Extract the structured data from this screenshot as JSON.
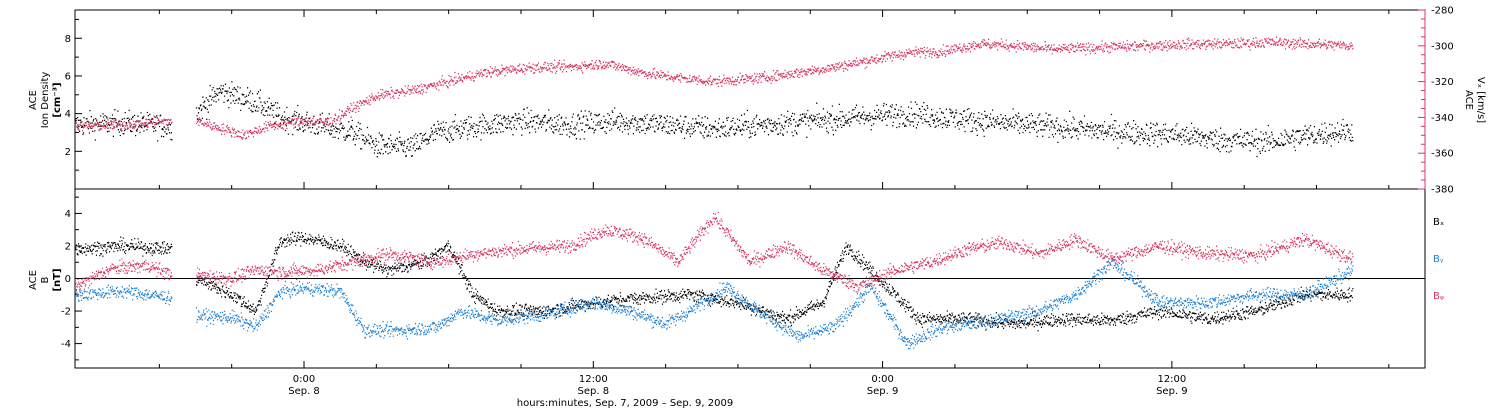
{
  "chart_data": [
    {
      "type": "scatter",
      "panel": "top",
      "ylabel_left": [
        "ACE",
        "Ion Density",
        "[cm⁻³]"
      ],
      "ylabel_right": [
        "ACE",
        "Vₓ [km/s]"
      ],
      "left_axis": {
        "ylim": [
          0,
          9.5
        ],
        "ticks": [
          2,
          4,
          6,
          8
        ]
      },
      "right_axis": {
        "ylim": [
          -380,
          -280
        ],
        "ticks": [
          -380,
          -360,
          -340,
          -320,
          -300,
          -280
        ]
      },
      "time_range_hours": [
        -9.5,
        46.5
      ],
      "series": [
        {
          "axis": "left",
          "color": "#000000",
          "trend": [
            [
              -9.5,
              3.4
            ],
            [
              -7.5,
              3.5
            ],
            [
              -5.5,
              3.3
            ],
            [
              -4.5,
              4.0
            ],
            [
              -3.5,
              5.2
            ],
            [
              -2.0,
              4.6
            ],
            [
              -1.0,
              3.8
            ],
            [
              0.5,
              3.4
            ],
            [
              2.0,
              3.0
            ],
            [
              3.0,
              2.3
            ],
            [
              4.5,
              2.2
            ],
            [
              5.5,
              3.0
            ],
            [
              7.0,
              3.3
            ],
            [
              9.0,
              3.6
            ],
            [
              11.0,
              3.4
            ],
            [
              13.0,
              3.6
            ],
            [
              15.0,
              3.4
            ],
            [
              17.0,
              3.2
            ],
            [
              19.0,
              3.4
            ],
            [
              21.0,
              3.6
            ],
            [
              23.0,
              3.8
            ],
            [
              25.0,
              4.0
            ],
            [
              26.5,
              3.8
            ],
            [
              28.0,
              3.6
            ],
            [
              30.0,
              3.4
            ],
            [
              32.0,
              3.2
            ],
            [
              34.0,
              3.0
            ],
            [
              36.0,
              2.9
            ],
            [
              38.0,
              2.6
            ],
            [
              40.0,
              2.5
            ],
            [
              42.0,
              2.9
            ],
            [
              43.5,
              3.1
            ]
          ],
          "gaps": [
            [
              -5.5,
              -4.5
            ]
          ]
        },
        {
          "name": "",
          "axis": "right",
          "color": "#d8345f",
          "trend": [
            [
              -9.5,
              -345
            ],
            [
              -7.5,
              -344
            ],
            [
              -5.5,
              -342
            ],
            [
              -4.5,
              -342
            ],
            [
              -3.5,
              -346
            ],
            [
              -2.5,
              -350
            ],
            [
              -1.5,
              -345
            ],
            [
              0.0,
              -342
            ],
            [
              1.0,
              -343
            ],
            [
              2.0,
              -335
            ],
            [
              3.0,
              -328
            ],
            [
              4.5,
              -325
            ],
            [
              6.0,
              -320
            ],
            [
              7.5,
              -315
            ],
            [
              9.5,
              -312
            ],
            [
              11.0,
              -312
            ],
            [
              12.5,
              -310
            ],
            [
              14.0,
              -315
            ],
            [
              15.5,
              -318
            ],
            [
              17.0,
              -320
            ],
            [
              19.0,
              -318
            ],
            [
              20.5,
              -315
            ],
            [
              22.0,
              -312
            ],
            [
              23.5,
              -308
            ],
            [
              25.0,
              -304
            ],
            [
              26.5,
              -303
            ],
            [
              28.0,
              -299
            ],
            [
              29.5,
              -300
            ],
            [
              31.0,
              -302
            ],
            [
              33.0,
              -301
            ],
            [
              35.0,
              -300
            ],
            [
              37.0,
              -299
            ],
            [
              38.5,
              -299
            ],
            [
              40.0,
              -298
            ],
            [
              41.5,
              -299
            ],
            [
              43.5,
              -300
            ]
          ],
          "gaps": [
            [
              -5.5,
              -4.5
            ]
          ]
        }
      ]
    },
    {
      "type": "scatter",
      "panel": "bottom",
      "ylabel_left": [
        "ACE",
        "B",
        "[nT]"
      ],
      "ylim": [
        -5.5,
        5.5
      ],
      "ticks": [
        -4,
        -2,
        0,
        2,
        4
      ],
      "zero_line": true,
      "time_range_hours": [
        -9.5,
        46.5
      ],
      "series": [
        {
          "name": "Bₓ",
          "color": "#000000",
          "trend": [
            [
              -9.5,
              1.8
            ],
            [
              -7.5,
              2.0
            ],
            [
              -5.5,
              1.8
            ],
            [
              -4.5,
              0.0
            ],
            [
              -3.0,
              -1.0
            ],
            [
              -2.0,
              -2.0
            ],
            [
              -1.0,
              2.3
            ],
            [
              0.0,
              2.5
            ],
            [
              1.5,
              2.0
            ],
            [
              2.5,
              1.0
            ],
            [
              3.5,
              0.5
            ],
            [
              5.0,
              1.0
            ],
            [
              6.0,
              2.0
            ],
            [
              7.0,
              -1.0
            ],
            [
              8.0,
              -2.0
            ],
            [
              10.0,
              -2.0
            ],
            [
              12.0,
              -1.5
            ],
            [
              14.0,
              -1.2
            ],
            [
              16.0,
              -1.0
            ],
            [
              18.0,
              -1.5
            ],
            [
              20.0,
              -2.5
            ],
            [
              21.5,
              -1.5
            ],
            [
              22.5,
              2.0
            ],
            [
              23.5,
              0.5
            ],
            [
              25.5,
              -2.5
            ],
            [
              27.5,
              -2.5
            ],
            [
              29.5,
              -2.8
            ],
            [
              31.5,
              -2.5
            ],
            [
              33.5,
              -2.6
            ],
            [
              35.5,
              -2.0
            ],
            [
              37.5,
              -2.5
            ],
            [
              39.5,
              -2.0
            ],
            [
              41.5,
              -1.0
            ],
            [
              43.5,
              -1.0
            ]
          ],
          "gaps": [
            [
              -5.5,
              -4.5
            ]
          ]
        },
        {
          "name": "Bᵧ",
          "color": "#1a7fd4",
          "trend": [
            [
              -9.5,
              -1.0
            ],
            [
              -7.5,
              -0.8
            ],
            [
              -5.5,
              -1.2
            ],
            [
              -4.5,
              -2.3
            ],
            [
              -3.0,
              -2.4
            ],
            [
              -2.0,
              -3.0
            ],
            [
              -1.0,
              -0.8
            ],
            [
              0.0,
              -0.6
            ],
            [
              1.5,
              -0.8
            ],
            [
              2.5,
              -3.2
            ],
            [
              4.0,
              -3.2
            ],
            [
              5.5,
              -3.0
            ],
            [
              6.5,
              -2.0
            ],
            [
              8.0,
              -2.6
            ],
            [
              10.0,
              -2.2
            ],
            [
              12.0,
              -1.5
            ],
            [
              13.5,
              -2.0
            ],
            [
              15.0,
              -2.8
            ],
            [
              16.0,
              -2.0
            ],
            [
              17.5,
              -0.5
            ],
            [
              19.0,
              -2.2
            ],
            [
              20.5,
              -3.6
            ],
            [
              22.0,
              -3.0
            ],
            [
              23.5,
              -0.5
            ],
            [
              25.0,
              -4.0
            ],
            [
              26.5,
              -3.0
            ],
            [
              28.5,
              -2.6
            ],
            [
              30.5,
              -2.0
            ],
            [
              32.0,
              -1.0
            ],
            [
              33.5,
              1.0
            ],
            [
              35.5,
              -1.5
            ],
            [
              37.5,
              -1.5
            ],
            [
              39.5,
              -1.0
            ],
            [
              41.5,
              -1.0
            ],
            [
              43.5,
              0.5
            ]
          ],
          "gaps": [
            [
              -5.5,
              -4.5
            ]
          ]
        },
        {
          "name": "Bᵩ",
          "color": "#d8345f",
          "trend": [
            [
              -9.5,
              -0.5
            ],
            [
              -8.0,
              0.6
            ],
            [
              -6.5,
              0.8
            ],
            [
              -5.5,
              0.2
            ],
            [
              -4.5,
              0.2
            ],
            [
              -3.0,
              0.0
            ],
            [
              -2.0,
              0.5
            ],
            [
              -1.0,
              0.4
            ],
            [
              0.5,
              0.5
            ],
            [
              2.0,
              1.0
            ],
            [
              3.5,
              1.5
            ],
            [
              5.5,
              1.0
            ],
            [
              7.0,
              1.5
            ],
            [
              9.0,
              1.8
            ],
            [
              11.0,
              2.0
            ],
            [
              12.5,
              3.0
            ],
            [
              14.0,
              2.5
            ],
            [
              15.5,
              1.0
            ],
            [
              17.0,
              3.8
            ],
            [
              18.5,
              1.0
            ],
            [
              20.0,
              2.0
            ],
            [
              21.5,
              0.5
            ],
            [
              23.0,
              -0.5
            ],
            [
              24.5,
              0.5
            ],
            [
              26.0,
              1.0
            ],
            [
              27.5,
              1.8
            ],
            [
              29.0,
              2.2
            ],
            [
              30.5,
              1.5
            ],
            [
              32.0,
              2.4
            ],
            [
              33.5,
              1.2
            ],
            [
              35.5,
              2.0
            ],
            [
              37.5,
              1.5
            ],
            [
              39.5,
              1.4
            ],
            [
              41.5,
              2.4
            ],
            [
              43.5,
              1.2
            ]
          ],
          "gaps": [
            [
              -5.5,
              -4.5
            ]
          ]
        }
      ]
    }
  ],
  "legend": {
    "bx": "Bₓ",
    "by": "Bᵧ",
    "bz": "Bᵩ"
  },
  "x_axis": {
    "ticks": [
      {
        "hour": 0,
        "time": "0:00",
        "date": "Sep. 8"
      },
      {
        "hour": 12,
        "time": "12:00",
        "date": "Sep. 8"
      },
      {
        "hour": 24,
        "time": "0:00",
        "date": "Sep. 9"
      },
      {
        "hour": 36,
        "time": "12:00",
        "date": "Sep. 9"
      }
    ],
    "xlabel": "hours:minutes, Sep.  7, 2009 – Sep.  9, 2009"
  },
  "top_panel_labels": {
    "left_line1": "ACE",
    "left_line2": "Ion Density",
    "left_line3": "[cm⁻³]",
    "right_line1": "ACE",
    "right_line2": "Vₓ [km/s]"
  },
  "bottom_panel_labels": {
    "left_line1": "ACE",
    "left_line2": "B",
    "left_line3": "[nT]"
  },
  "top_left_ticks": [
    "2",
    "4",
    "6",
    "8"
  ],
  "top_right_ticks": [
    "-380",
    "-360",
    "-340",
    "-320",
    "-300",
    "-280"
  ],
  "bottom_ticks": [
    "-4",
    "-2",
    "0",
    "2",
    "4"
  ]
}
